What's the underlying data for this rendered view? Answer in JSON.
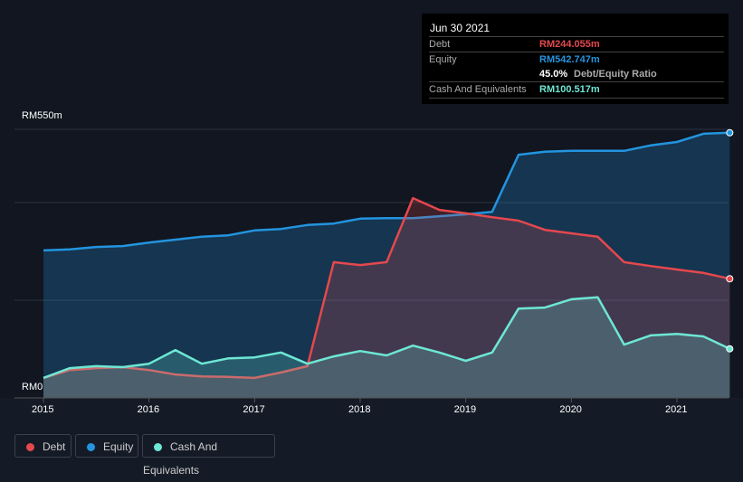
{
  "tooltip": {
    "date": "Jun 30 2021",
    "debt_label": "Debt",
    "debt_value": "RM244.055m",
    "equity_label": "Equity",
    "equity_value": "RM542.747m",
    "ratio_value": "45.0%",
    "ratio_label": "Debt/Equity Ratio",
    "cash_label": "Cash And Equivalents",
    "cash_value": "RM100.517m"
  },
  "legend": [
    {
      "label": "Debt",
      "color": "#e5484d"
    },
    {
      "label": "Equity",
      "color": "#2394df"
    },
    {
      "label": "Cash And Equivalents",
      "color": "#6ee7d4"
    }
  ],
  "chart_data": {
    "type": "area",
    "ylim": [
      0,
      550
    ],
    "y_tick_labels": [
      "RM550m",
      "RM0"
    ],
    "x_tick_labels": [
      "2015",
      "2016",
      "2017",
      "2018",
      "2019",
      "2020",
      "2021"
    ],
    "x": [
      2015,
      2015.25,
      2015.5,
      2015.75,
      2016,
      2016.25,
      2016.5,
      2016.75,
      2017,
      2017.25,
      2017.5,
      2017.75,
      2018,
      2018.25,
      2018.5,
      2018.75,
      2019,
      2019.25,
      2019.5,
      2019.75,
      2020,
      2020.25,
      2020.5,
      2020.75,
      2021,
      2021.25,
      2021.5
    ],
    "series": [
      {
        "name": "Equity",
        "color": "#2394df",
        "values": [
          302,
          304,
          309,
          311,
          318,
          324,
          330,
          333,
          343,
          346,
          354,
          357,
          367,
          368,
          368,
          372,
          376,
          381,
          498,
          504,
          506,
          506,
          506,
          517,
          524,
          541,
          543
        ]
      },
      {
        "name": "Debt",
        "color": "#e5484d",
        "values": [
          41,
          57,
          61,
          63,
          57,
          48,
          44,
          43,
          41,
          52,
          65,
          278,
          272,
          278,
          409,
          385,
          378,
          370,
          363,
          344,
          337,
          330,
          278,
          270,
          263,
          256,
          244
        ]
      },
      {
        "name": "Cash And Equivalents",
        "color": "#6ee7d4",
        "values": [
          41,
          61,
          65,
          63,
          70,
          98,
          70,
          81,
          83,
          93,
          70,
          85,
          96,
          87,
          107,
          93,
          76,
          93,
          183,
          185,
          202,
          206,
          109,
          128,
          131,
          126,
          100.5
        ]
      }
    ]
  }
}
